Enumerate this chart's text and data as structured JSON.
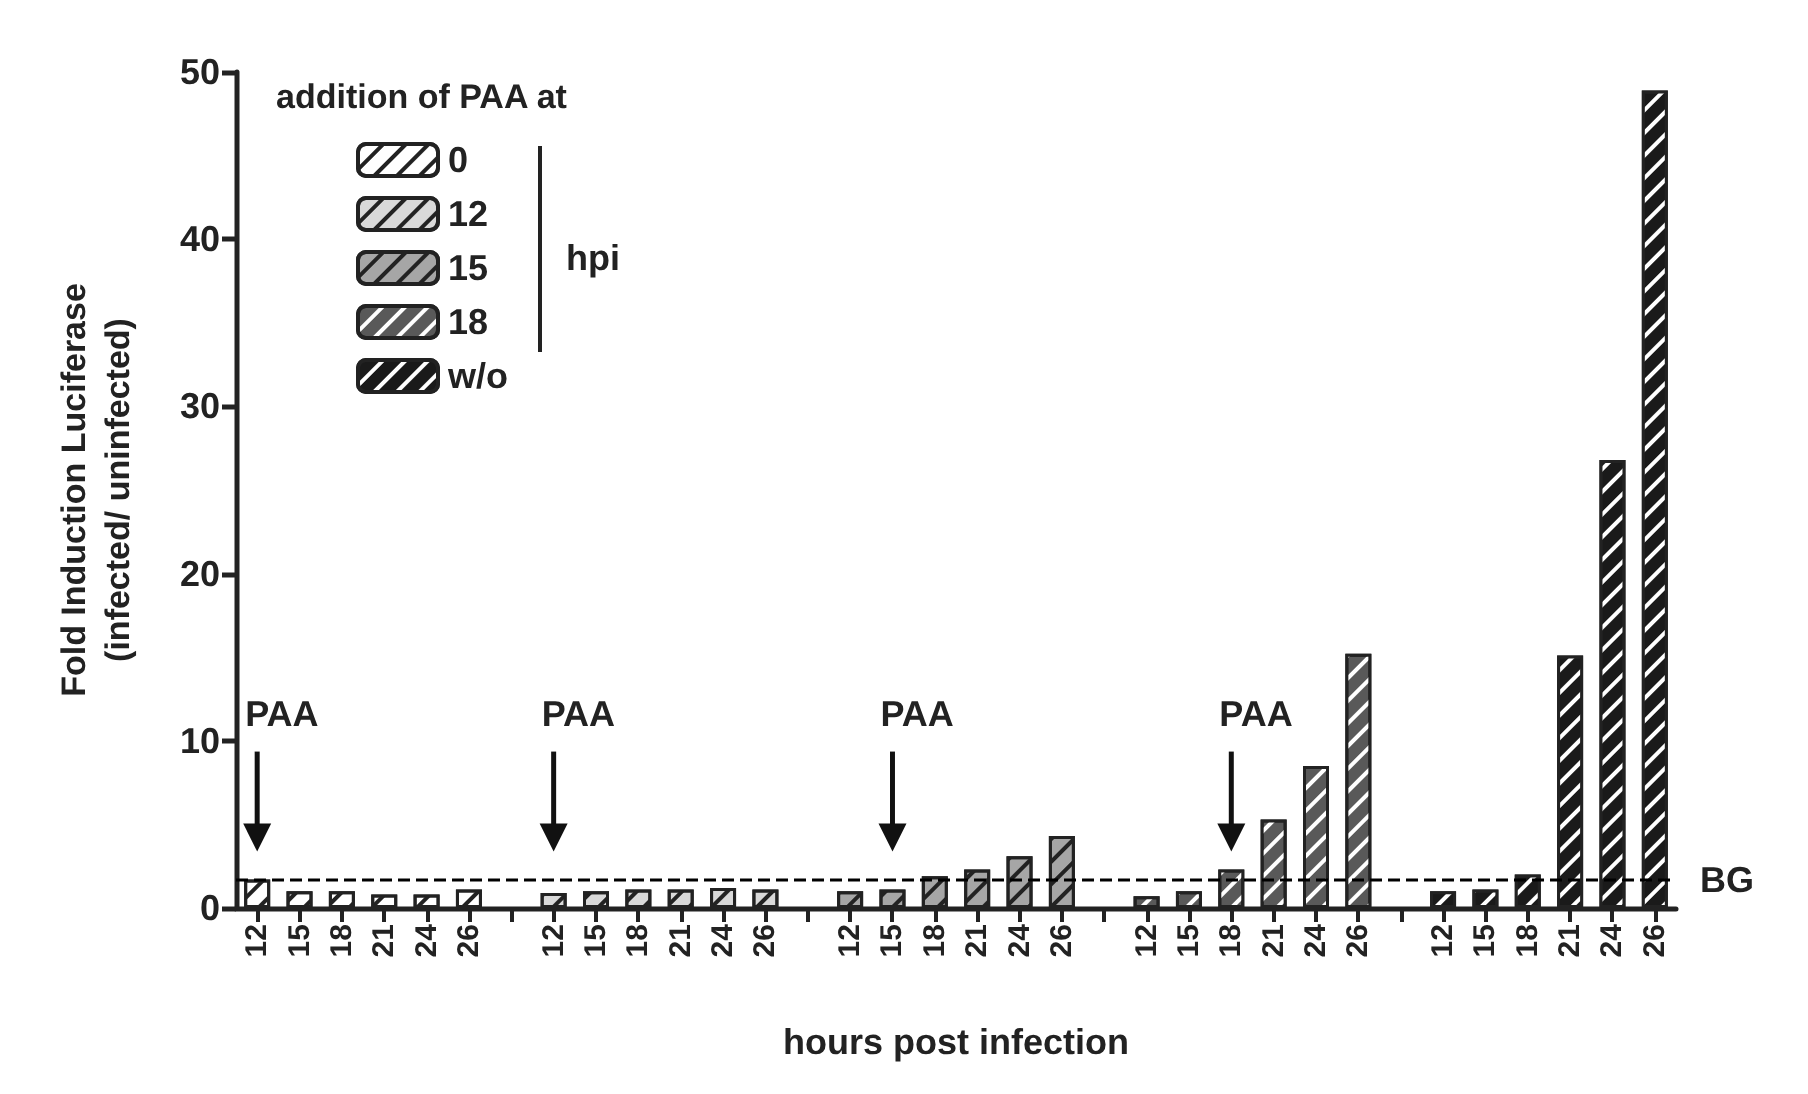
{
  "chart_data": {
    "type": "bar",
    "xlabel": "hours post infection",
    "ylabel": "Fold Induction Luciferase\n(infected/ uninfected)",
    "categories": [
      "12",
      "15",
      "18",
      "21",
      "24",
      "26",
      null,
      "12",
      "15",
      "18",
      "21",
      "24",
      "26",
      null,
      "12",
      "15",
      "18",
      "21",
      "24",
      "26",
      null,
      "12",
      "15",
      "18",
      "21",
      "24",
      "26",
      null,
      "12",
      "15",
      "18",
      "21",
      "24",
      "26"
    ],
    "series": [
      {
        "name": "0",
        "color": "#ffffff",
        "values": [
          1.7,
          1.0,
          1.0,
          0.8,
          0.8,
          1.1,
          null,
          null,
          null,
          null,
          null,
          null,
          null,
          null,
          null,
          null,
          null,
          null,
          null,
          null,
          null,
          null,
          null,
          null,
          null,
          null,
          null,
          null,
          null,
          null,
          null,
          null,
          null,
          null
        ]
      },
      {
        "name": "12",
        "color": "#d9d9d9",
        "values": [
          null,
          null,
          null,
          null,
          null,
          null,
          null,
          0.9,
          1.0,
          1.1,
          1.1,
          1.2,
          1.1,
          null,
          null,
          null,
          null,
          null,
          null,
          null,
          null,
          null,
          null,
          null,
          null,
          null,
          null,
          null,
          null,
          null,
          null,
          null,
          null,
          null
        ]
      },
      {
        "name": "15",
        "color": "#a6a6a6",
        "values": [
          null,
          null,
          null,
          null,
          null,
          null,
          null,
          null,
          null,
          null,
          null,
          null,
          null,
          null,
          1.0,
          1.1,
          1.9,
          2.3,
          3.1,
          4.3,
          null,
          null,
          null,
          null,
          null,
          null,
          null,
          null,
          null,
          null,
          null,
          null,
          null,
          null
        ]
      },
      {
        "name": "18",
        "color": "#595959",
        "values": [
          null,
          null,
          null,
          null,
          null,
          null,
          null,
          null,
          null,
          null,
          null,
          null,
          null,
          null,
          null,
          null,
          null,
          null,
          null,
          null,
          null,
          0.7,
          1.0,
          2.3,
          5.3,
          8.5,
          15.2,
          null,
          null,
          null,
          null,
          null,
          null,
          null
        ]
      },
      {
        "name": "w/o",
        "color": "#1a1a1a",
        "values": [
          null,
          null,
          null,
          null,
          null,
          null,
          null,
          null,
          null,
          null,
          null,
          null,
          null,
          null,
          null,
          null,
          null,
          null,
          null,
          null,
          null,
          null,
          null,
          null,
          null,
          null,
          null,
          null,
          1.0,
          1.1,
          2.0,
          15.1,
          26.8,
          48.9
        ]
      }
    ],
    "ylim": [
      0,
      50
    ],
    "yticks": [
      0,
      10,
      20,
      30,
      40,
      50
    ],
    "legend": "top left",
    "legend_title": "addition of PAA at",
    "ref_lines": [
      {
        "axis": "y",
        "value": 1.7,
        "label": "BG",
        "line_style": "dashed",
        "color": "#000000"
      }
    ],
    "annotations": [
      "hpi",
      "PAA",
      "PAA",
      "PAA",
      "PAA"
    ]
  }
}
